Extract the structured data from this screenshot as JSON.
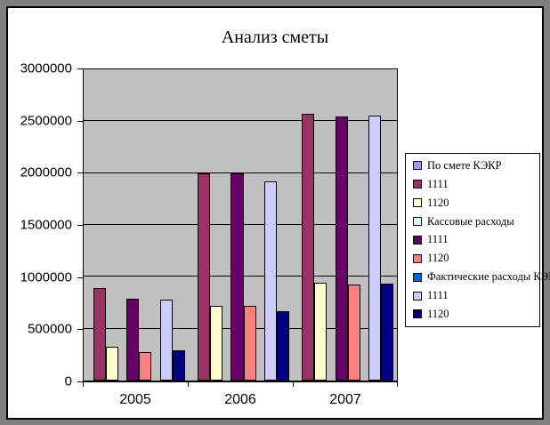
{
  "colors": {
    "outer_frame": "#7F7F7F",
    "chart_background": "#FFFFFF",
    "plot_background": "#C0C0C0",
    "border": "#000000"
  },
  "chart_data": {
    "type": "bar",
    "title": "Анализ сметы",
    "xlabel": "",
    "ylabel": "",
    "categories": [
      "2005",
      "2006",
      "2007"
    ],
    "ylim": [
      0,
      3000000
    ],
    "ytick_step": 500000,
    "yticks": [
      0,
      500000,
      1000000,
      1500000,
      2000000,
      2500000,
      3000000
    ],
    "ytick_labels": [
      "0",
      "500000",
      "1000000",
      "1500000",
      "2000000",
      "2500000",
      "3000000"
    ],
    "grid": true,
    "legend_position": "right",
    "series": [
      {
        "name": "По смете КЭКР",
        "color": "#9999FF",
        "legend_only": true,
        "values": [
          0,
          0,
          0
        ]
      },
      {
        "name": "1111",
        "color": "#993366",
        "legend_only": false,
        "values": [
          890000,
          2000000,
          2570000
        ]
      },
      {
        "name": "1120",
        "color": "#FFFFCC",
        "legend_only": false,
        "values": [
          325000,
          720000,
          940000
        ]
      },
      {
        "name": "Кассовые расходы",
        "color": "#CCFFFF",
        "legend_only": true,
        "values": [
          0,
          0,
          0
        ]
      },
      {
        "name": "1111",
        "color": "#660066",
        "legend_only": false,
        "values": [
          790000,
          2000000,
          2550000
        ]
      },
      {
        "name": "1120",
        "color": "#FF8080",
        "legend_only": false,
        "values": [
          275000,
          720000,
          930000
        ]
      },
      {
        "name": "Фактические расходы КЭКР",
        "color": "#0066CC",
        "legend_only": true,
        "values": [
          0,
          0,
          0
        ]
      },
      {
        "name": "1111",
        "color": "#CCCCFF",
        "legend_only": false,
        "values": [
          780000,
          1920000,
          2555000
        ]
      },
      {
        "name": "1120",
        "color": "#000080",
        "legend_only": false,
        "values": [
          290000,
          670000,
          935000
        ]
      }
    ]
  }
}
